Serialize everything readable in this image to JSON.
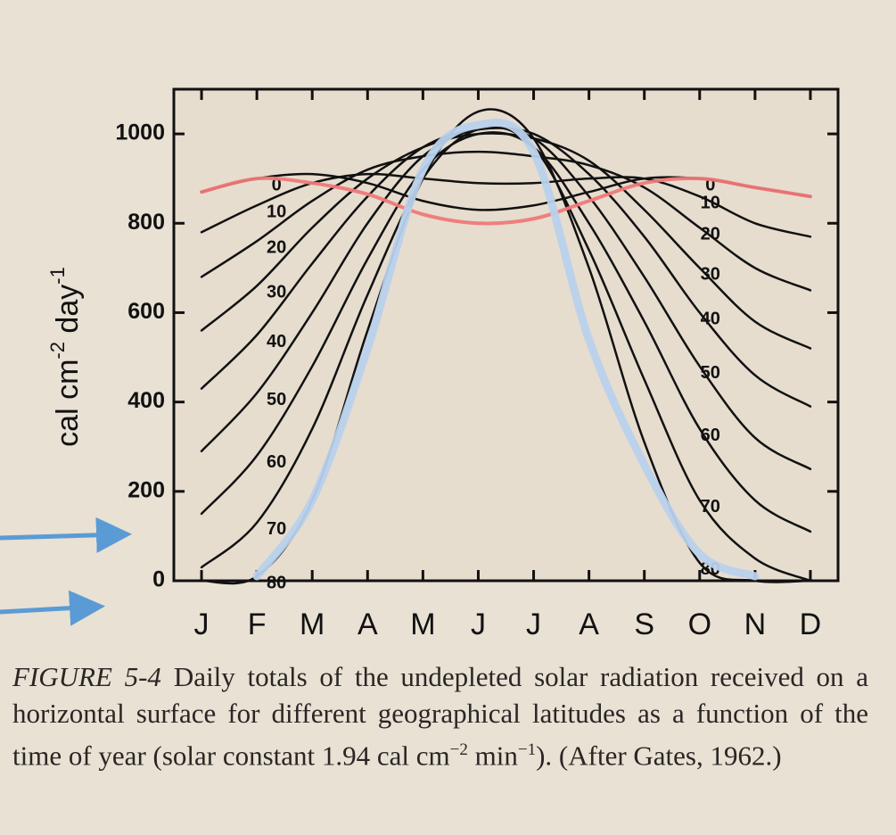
{
  "chart_data": {
    "type": "line",
    "y_label": [
      "cal cm",
      "-2",
      " day",
      "-1"
    ],
    "categories": [
      "J",
      "F",
      "M",
      "A",
      "M",
      "J",
      "J",
      "A",
      "S",
      "O",
      "N",
      "D"
    ],
    "ylim": [
      0,
      1100
    ],
    "yticks": [
      0,
      200,
      400,
      600,
      800,
      1000
    ],
    "series": [
      {
        "name": "0",
        "color": "#111111",
        "values": [
          870,
          900,
          910,
          890,
          850,
          830,
          840,
          870,
          900,
          900,
          880,
          860
        ]
      },
      {
        "name": "10",
        "color": "#111111",
        "values": [
          780,
          840,
          890,
          910,
          900,
          890,
          890,
          900,
          900,
          860,
          800,
          770
        ]
      },
      {
        "name": "20",
        "color": "#111111",
        "values": [
          680,
          760,
          850,
          920,
          950,
          960,
          950,
          930,
          880,
          790,
          700,
          650
        ]
      },
      {
        "name": "30",
        "color": "#111111",
        "values": [
          560,
          660,
          790,
          900,
          970,
          1000,
          990,
          940,
          830,
          700,
          580,
          520
        ]
      },
      {
        "name": "40",
        "color": "#111111",
        "values": [
          430,
          550,
          710,
          860,
          970,
          1010,
          1000,
          910,
          770,
          600,
          460,
          390
        ]
      },
      {
        "name": "50",
        "color": "#111111",
        "values": [
          290,
          420,
          600,
          800,
          950,
          1010,
          990,
          860,
          680,
          480,
          320,
          250
        ]
      },
      {
        "name": "60",
        "color": "#111111",
        "values": [
          150,
          280,
          480,
          720,
          920,
          1000,
          970,
          800,
          580,
          340,
          180,
          110
        ]
      },
      {
        "name": "70",
        "color": "#111111",
        "values": [
          30,
          130,
          340,
          640,
          900,
          1010,
          970,
          740,
          450,
          180,
          50,
          0
        ]
      },
      {
        "name": "80",
        "color": "#111111",
        "values": [
          0,
          10,
          180,
          560,
          900,
          1050,
          990,
          700,
          310,
          40,
          0,
          0
        ]
      },
      {
        "color": "#f07878",
        "values": [
          870,
          900,
          890,
          865,
          820,
          800,
          810,
          850,
          890,
          900,
          880,
          860
        ]
      },
      {
        "color": "#b9d1ec",
        "values": [
          null,
          10,
          180,
          520,
          920,
          1020,
          960,
          540,
          260,
          60,
          10,
          null
        ]
      }
    ]
  },
  "caption": {
    "label": "FIGURE 5-4",
    "parts": [
      "Daily totals of the undepleted solar radiation received on a horizontal surface for different geographical latitudes as a function of the time of year (solar constant 1.94 cal cm",
      "−2",
      " min",
      "−1",
      "). (After Gates, 1962.)"
    ]
  }
}
